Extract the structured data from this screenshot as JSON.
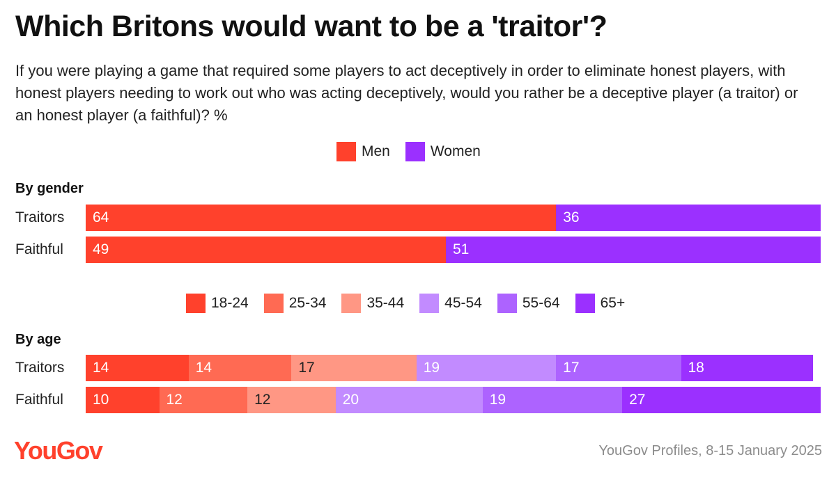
{
  "title": "Which Britons would want to be a 'traitor'?",
  "subtitle": "If you were playing a game that required some players to act deceptively in order to eliminate honest players, with honest players needing to work out who was acting deceptively, would you rather be a deceptive player (a traitor) or an honest player (a faithful)? %",
  "logo": "YouGov",
  "source": "YouGov Profiles, 8-15 January 2025",
  "chart_data": [
    {
      "type": "bar",
      "orientation": "horizontal",
      "stacked": true,
      "section_label": "By gender",
      "categories": [
        "Traitors",
        "Faithful"
      ],
      "series": [
        {
          "name": "Men",
          "color": "#ff412c",
          "label_color": "#ffffff",
          "values": [
            64,
            49
          ]
        },
        {
          "name": "Women",
          "color": "#9b30ff",
          "label_color": "#ffffff",
          "values": [
            36,
            51
          ]
        }
      ],
      "legend_position": "top-center",
      "grid": false
    },
    {
      "type": "bar",
      "orientation": "horizontal",
      "stacked": true,
      "section_label": "By age",
      "categories": [
        "Traitors",
        "Faithful"
      ],
      "series": [
        {
          "name": "18-24",
          "color": "#ff412c",
          "label_color": "#ffffff",
          "values": [
            14,
            10
          ]
        },
        {
          "name": "25-34",
          "color": "#ff6a53",
          "label_color": "#ffffff",
          "values": [
            14,
            12
          ]
        },
        {
          "name": "35-44",
          "color": "#ff9784",
          "label_color": "#222222",
          "values": [
            17,
            12
          ]
        },
        {
          "name": "45-54",
          "color": "#c28bff",
          "label_color": "#ffffff",
          "values": [
            19,
            20
          ]
        },
        {
          "name": "55-64",
          "color": "#ad63ff",
          "label_color": "#ffffff",
          "values": [
            17,
            19
          ]
        },
        {
          "name": "65+",
          "color": "#9b30ff",
          "label_color": "#ffffff",
          "values": [
            18,
            27
          ]
        }
      ],
      "legend_position": "top-center",
      "grid": false
    }
  ]
}
